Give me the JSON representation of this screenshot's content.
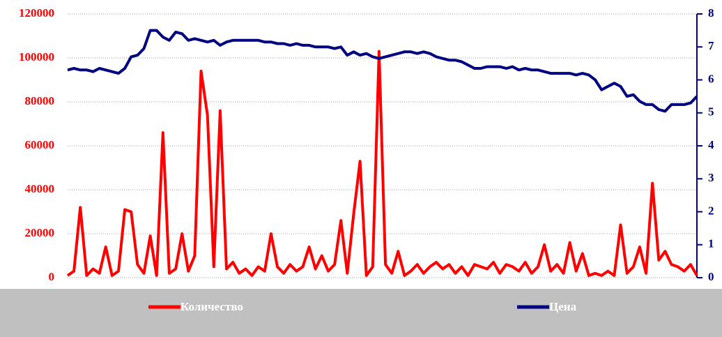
{
  "chart_data": {
    "type": "line",
    "series": [
      {
        "name": "Количество",
        "color": "#ff0000",
        "axis": "y",
        "values": [
          1000,
          3000,
          32000,
          1000,
          4000,
          2000,
          14000,
          1000,
          3000,
          31000,
          30000,
          6000,
          2000,
          19000,
          1000,
          66000,
          2000,
          4000,
          20000,
          3000,
          10000,
          94000,
          74000,
          5000,
          76000,
          4000,
          7000,
          2000,
          4000,
          1000,
          5000,
          3000,
          20000,
          5000,
          2000,
          6000,
          3000,
          5000,
          14000,
          4000,
          10000,
          3000,
          6000,
          26000,
          2000,
          29000,
          53000,
          1000,
          5000,
          103000,
          6000,
          2000,
          12000,
          1000,
          3000,
          6000,
          2000,
          5000,
          7000,
          4000,
          6000,
          2000,
          5000,
          1000,
          6000,
          5000,
          4000,
          7000,
          2000,
          6000,
          5000,
          3000,
          7000,
          2000,
          5000,
          15000,
          3000,
          6000,
          2000,
          16000,
          3000,
          11000,
          1000,
          2000,
          1000,
          3000,
          1000,
          24000,
          2000,
          5000,
          14000,
          2000,
          43000,
          8000,
          12000,
          6000,
          5000,
          3000,
          6000,
          1000
        ]
      },
      {
        "name": "Цена",
        "color": "#000080",
        "axis": "y2",
        "values": [
          6.3,
          6.35,
          6.3,
          6.3,
          6.25,
          6.35,
          6.3,
          6.25,
          6.2,
          6.35,
          6.7,
          6.75,
          6.95,
          7.5,
          7.5,
          7.3,
          7.2,
          7.45,
          7.4,
          7.2,
          7.25,
          7.2,
          7.15,
          7.2,
          7.05,
          7.15,
          7.2,
          7.2,
          7.2,
          7.2,
          7.2,
          7.15,
          7.15,
          7.1,
          7.1,
          7.05,
          7.1,
          7.05,
          7.05,
          7.0,
          7.0,
          7.0,
          6.95,
          7.0,
          6.75,
          6.85,
          6.75,
          6.8,
          6.7,
          6.65,
          6.7,
          6.75,
          6.8,
          6.85,
          6.85,
          6.8,
          6.85,
          6.8,
          6.7,
          6.65,
          6.6,
          6.6,
          6.55,
          6.45,
          6.35,
          6.35,
          6.4,
          6.4,
          6.4,
          6.35,
          6.4,
          6.3,
          6.35,
          6.3,
          6.3,
          6.25,
          6.2,
          6.2,
          6.2,
          6.2,
          6.15,
          6.2,
          6.15,
          6.0,
          5.7,
          5.8,
          5.9,
          5.8,
          5.5,
          5.55,
          5.35,
          5.25,
          5.25,
          5.1,
          5.05,
          5.25,
          5.25,
          5.25,
          5.3,
          5.5
        ]
      }
    ],
    "ylim": [
      0,
      120000
    ],
    "yticks": [
      0,
      20000,
      40000,
      60000,
      80000,
      100000,
      120000
    ],
    "y2lim": [
      0,
      8
    ],
    "y2ticks": [
      0,
      1,
      2,
      3,
      4,
      5,
      6,
      7,
      8
    ],
    "grid": true,
    "legend": "bottom"
  }
}
